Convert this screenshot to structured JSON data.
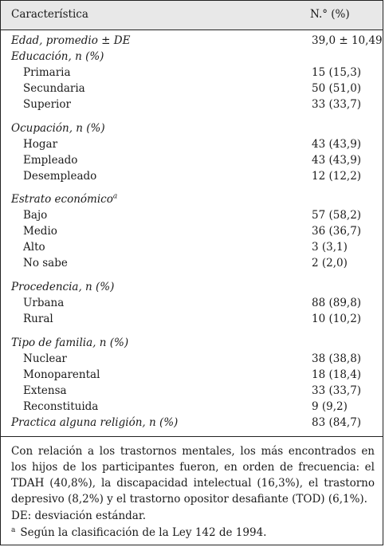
{
  "header": {
    "col1": "Característica",
    "col2": "N.° (%)"
  },
  "rows": [
    {
      "label": "Edad, promedio ± DE",
      "value": "39,0 ± 10,49",
      "kind": "hdr"
    },
    {
      "label": "Educación, n (%)",
      "value": "",
      "kind": "hdr"
    },
    {
      "label": "Primaria",
      "value": "15 (15,3)",
      "kind": "sub"
    },
    {
      "label": "Secundaria",
      "value": "50 (51,0)",
      "kind": "sub"
    },
    {
      "label": "Superior",
      "value": "33 (33,7)",
      "kind": "sub"
    },
    {
      "label": "Ocupación, n (%)",
      "value": "",
      "kind": "hdr"
    },
    {
      "label": "Hogar",
      "value": "43 (43,9)",
      "kind": "sub"
    },
    {
      "label": "Empleado",
      "value": "43 (43,9)",
      "kind": "sub"
    },
    {
      "label": "Desempleado",
      "value": "12 (12,2)",
      "kind": "sub"
    },
    {
      "label": "Estrato económico",
      "sup": "a",
      "value": "",
      "kind": "hdr"
    },
    {
      "label": "Bajo",
      "value": "57 (58,2)",
      "kind": "sub"
    },
    {
      "label": "Medio",
      "value": "36 (36,7)",
      "kind": "sub"
    },
    {
      "label": "Alto",
      "value": "3 (3,1)",
      "kind": "sub"
    },
    {
      "label": "No sabe",
      "value": "2 (2,0)",
      "kind": "sub"
    },
    {
      "label": "Procedencia, n (%)",
      "value": "",
      "kind": "hdr"
    },
    {
      "label": "Urbana",
      "value": "88 (89,8)",
      "kind": "sub"
    },
    {
      "label": "Rural",
      "value": "10 (10,2)",
      "kind": "sub"
    },
    {
      "label": "Tipo de familia, n (%)",
      "value": "",
      "kind": "hdr"
    },
    {
      "label": "Nuclear",
      "value": "38 (38,8)",
      "kind": "sub"
    },
    {
      "label": "Monoparental",
      "value": "18 (18,4)",
      "kind": "sub"
    },
    {
      "label": "Extensa",
      "value": "33 (33,7)",
      "kind": "sub"
    },
    {
      "label": "Reconstituida",
      "value": "9 (9,2)",
      "kind": "sub"
    },
    {
      "label": "Practica alguna religión, n (%)",
      "value": "83 (84,7)",
      "kind": "hdr"
    }
  ],
  "footer": {
    "note": "Con relación a los trastornos mentales, los más encontrados en los hijos de los participantes fueron, en orden de frecuencia: el TDAH (40,8%), la discapacidad intelectual (16,3%), el trastorno depresivo (8,2%) y el trastorno opositor desafiante (TOD) (6,1%).",
    "abbreviation": "DE: desviación estándar.",
    "footnote_mark": "a",
    "footnote": "Según la clasificación de la Ley 142 de 1994."
  }
}
